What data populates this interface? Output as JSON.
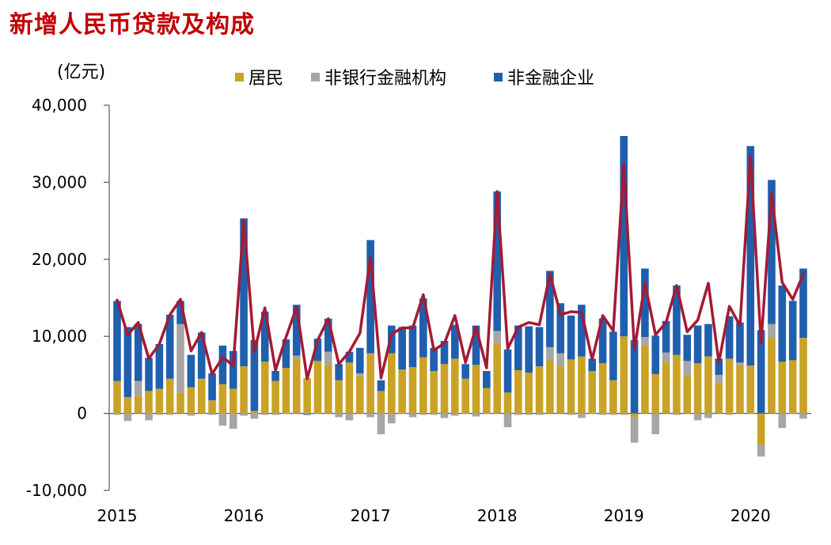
{
  "title": "新增人民币贷款及构成",
  "chart_data": {
    "type": "bar",
    "unit_label": "(亿元)",
    "ylim": [
      -10000,
      40000
    ],
    "y_ticks": [
      40000,
      30000,
      20000,
      10000,
      0,
      -10000
    ],
    "y_tick_labels": [
      "40,000",
      "30,000",
      "20,000",
      "10,000",
      "0",
      "-10,000"
    ],
    "x_tick_labels": [
      "2015",
      "2016",
      "2017",
      "2018",
      "2019",
      "2020"
    ],
    "categories": [
      "2015-01",
      "2015-02",
      "2015-03",
      "2015-04",
      "2015-05",
      "2015-06",
      "2015-07",
      "2015-08",
      "2015-09",
      "2015-10",
      "2015-11",
      "2015-12",
      "2016-01",
      "2016-02",
      "2016-03",
      "2016-04",
      "2016-05",
      "2016-06",
      "2016-07",
      "2016-08",
      "2016-09",
      "2016-10",
      "2016-11",
      "2016-12",
      "2017-01",
      "2017-02",
      "2017-03",
      "2017-04",
      "2017-05",
      "2017-06",
      "2017-07",
      "2017-08",
      "2017-09",
      "2017-10",
      "2017-11",
      "2017-12",
      "2018-01",
      "2018-02",
      "2018-03",
      "2018-04",
      "2018-05",
      "2018-06",
      "2018-07",
      "2018-08",
      "2018-09",
      "2018-10",
      "2018-11",
      "2018-12",
      "2019-01",
      "2019-02",
      "2019-03",
      "2019-04",
      "2019-05",
      "2019-06",
      "2019-07",
      "2019-08",
      "2019-09",
      "2019-10",
      "2019-11",
      "2019-12",
      "2020-01",
      "2020-02",
      "2020-03",
      "2020-04",
      "2020-05",
      "2020-06"
    ],
    "legend_position": "top",
    "grid": false,
    "series": [
      {
        "name": "居民",
        "color": "#c9a227",
        "values": [
          4200,
          2100,
          2300,
          2900,
          3200,
          4500,
          2700,
          3400,
          4400,
          1700,
          3800,
          3200,
          6100,
          300,
          6700,
          4200,
          5900,
          7100,
          4600,
          6800,
          6300,
          4300,
          6600,
          4900,
          7800,
          2900,
          7800,
          5700,
          6000,
          7300,
          5500,
          6400,
          7100,
          4500,
          6300,
          3300,
          9000,
          2700,
          5600,
          5300,
          6100,
          6900,
          6200,
          7000,
          7400,
          5500,
          6500,
          4300,
          10000,
          -500,
          8800,
          5100,
          6600,
          7600,
          4900,
          6500,
          7400,
          4000,
          7100,
          6300,
          6200,
          -4100,
          9800,
          6700,
          6900,
          9800
        ]
      },
      {
        "name": "非银行金融机构",
        "color": "#a6a6a6",
        "values": [
          -200,
          -1000,
          1900,
          -900,
          -200,
          -200,
          8900,
          -300,
          100,
          -200,
          -1600,
          -2000,
          -300,
          -700,
          -200,
          -200,
          -100,
          400,
          -100,
          -100,
          1700,
          -500,
          -900,
          300,
          -500,
          -2700,
          -1300,
          -100,
          -500,
          -200,
          -200,
          -600,
          -300,
          -100,
          -400,
          -100,
          1700,
          -1800,
          -200,
          -200,
          -200,
          1700,
          1600,
          -200,
          -600,
          -100,
          -200,
          -200,
          -200,
          -3300,
          1100,
          -2700,
          1300,
          -200,
          1900,
          -900,
          -600,
          1000,
          -200,
          300,
          -100,
          -1500,
          1800,
          -1900,
          -100,
          -700
        ]
      },
      {
        "name": "非金融企业",
        "color": "#1f5fae",
        "values": [
          10400,
          9100,
          7400,
          4300,
          5800,
          8300,
          3000,
          4200,
          6000,
          3500,
          5000,
          4900,
          19200,
          9200,
          6500,
          1300,
          3700,
          6600,
          -100,
          2900,
          4300,
          2100,
          1400,
          3300,
          14700,
          1400,
          3600,
          5500,
          5400,
          7600,
          3000,
          3000,
          4400,
          1900,
          5100,
          2200,
          18100,
          5600,
          5800,
          6000,
          5100,
          9900,
          6500,
          5700,
          6700,
          1600,
          5800,
          6300,
          26000,
          9500,
          8900,
          5000,
          4100,
          9000,
          3400,
          4900,
          4200,
          2100,
          5500,
          5200,
          28500,
          10800,
          18700,
          9900,
          7700,
          9000
        ]
      }
    ],
    "total_line": {
      "color": "#a31b35",
      "values": [
        14700,
        10200,
        11800,
        7100,
        9000,
        12800,
        14800,
        8100,
        10500,
        5100,
        7300,
        6200,
        25100,
        8000,
        13700,
        5600,
        9900,
        13800,
        4500,
        9500,
        12300,
        6400,
        8000,
        10400,
        20300,
        4600,
        10300,
        11100,
        11100,
        15400,
        8200,
        9100,
        12700,
        6600,
        11200,
        5900,
        28800,
        8400,
        11200,
        11800,
        11500,
        18100,
        12800,
        13200,
        13100,
        7000,
        12700,
        10700,
        32300,
        8300,
        16900,
        10200,
        11800,
        16600,
        10600,
        12100,
        16900,
        6600,
        13900,
        11400,
        33400,
        9100,
        28500,
        17000,
        14800,
        18100
      ]
    }
  }
}
